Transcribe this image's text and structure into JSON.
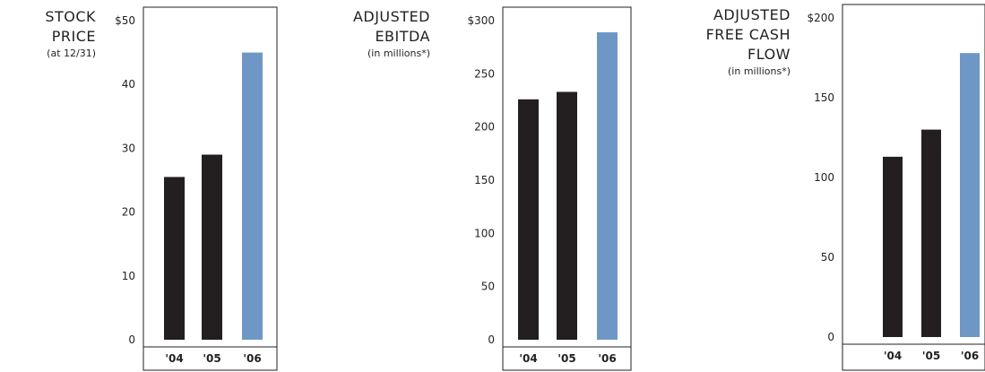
{
  "chart_data": [
    {
      "type": "bar",
      "title": [
        "STOCK",
        "PRICE"
      ],
      "subtitle": "(at 12/31)",
      "categories": [
        "'04",
        "'05",
        "'06"
      ],
      "values": [
        25.5,
        29,
        45
      ],
      "ylim": [
        0,
        50
      ],
      "yticks": [
        "0",
        "10",
        "20",
        "30",
        "40",
        "$50"
      ],
      "bar_colors": [
        "#231f20",
        "#231f20",
        "#6f97c6"
      ]
    },
    {
      "type": "bar",
      "title": [
        "ADJUSTED",
        "EBITDA"
      ],
      "subtitle": "(in millions*)",
      "categories": [
        "'04",
        "'05",
        "'06"
      ],
      "values": [
        226,
        233,
        289
      ],
      "ylim": [
        0,
        300
      ],
      "yticks": [
        "0",
        "50",
        "100",
        "150",
        "200",
        "250",
        "$300"
      ],
      "bar_colors": [
        "#231f20",
        "#231f20",
        "#6f97c6"
      ]
    },
    {
      "type": "bar",
      "title": [
        "ADJUSTED",
        "FREE CASH",
        "FLOW"
      ],
      "subtitle": "(in millions*)",
      "categories": [
        "'04",
        "'05",
        "'06"
      ],
      "values": [
        113,
        130,
        178
      ],
      "ylim": [
        0,
        200
      ],
      "yticks": [
        "0",
        "50",
        "100",
        "150",
        "$200"
      ],
      "bar_colors": [
        "#231f20",
        "#231f20",
        "#6f97c6"
      ]
    }
  ]
}
